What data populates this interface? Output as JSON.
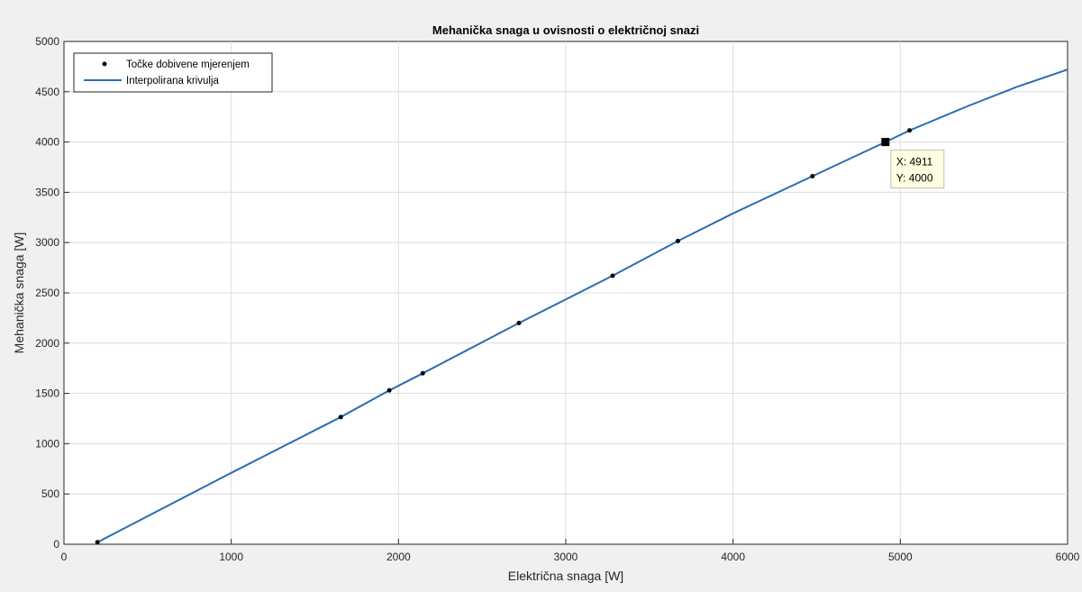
{
  "chart_data": {
    "type": "line",
    "title": "Mehanička snaga u ovisnosti o električnoj snazi",
    "xlabel": "Električna snaga [W]",
    "ylabel": "Mehanička snaga [W]",
    "xlim": [
      0,
      6000
    ],
    "ylim": [
      0,
      5000
    ],
    "xticks": [
      0,
      1000,
      2000,
      3000,
      4000,
      5000,
      6000
    ],
    "yticks": [
      0,
      500,
      1000,
      1500,
      2000,
      2500,
      3000,
      3500,
      4000,
      4500,
      5000
    ],
    "grid": true,
    "legend_position": "top-left",
    "series": [
      {
        "name": "Točke dobivene mjerenjem",
        "kind": "scatter",
        "color": "#000000",
        "x": [
          200,
          1655,
          1945,
          2145,
          2720,
          3280,
          3670,
          4475,
          5055
        ],
        "y": [
          20,
          1265,
          1530,
          1700,
          2200,
          2670,
          3015,
          3660,
          4115
        ]
      },
      {
        "name": "Interpolirana krivulja",
        "kind": "line",
        "color": "#2a6eb2",
        "x": [
          200,
          1000,
          1655,
          1945,
          2145,
          2720,
          3280,
          3670,
          4000,
          4475,
          4911,
          5055,
          5400,
          5700,
          6000
        ],
        "y": [
          20,
          710,
          1265,
          1530,
          1700,
          2200,
          2670,
          3015,
          3290,
          3660,
          4000,
          4115,
          4355,
          4550,
          4720
        ]
      }
    ],
    "datatip": {
      "x": 4911,
      "y": 4000,
      "x_label": "X: 4911",
      "y_label": "Y: 4000"
    }
  }
}
